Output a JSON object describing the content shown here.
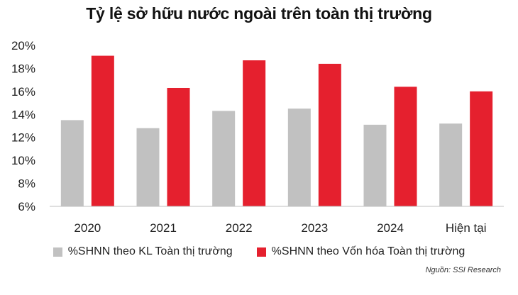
{
  "title": "Tỷ lệ sở hữu nước ngoài trên toàn thị trường",
  "source": "Nguồn: SSI Research",
  "colors": {
    "series1": "#c1c1c1",
    "series2": "#e5202e",
    "axis": "#bfbfbf"
  },
  "chart_data": {
    "type": "bar",
    "categories": [
      "2020",
      "2021",
      "2022",
      "2023",
      "2024",
      "Hiện tại"
    ],
    "series": [
      {
        "name": "%SHNN theo KL Toàn thị trường",
        "values": [
          13.5,
          12.8,
          14.3,
          14.5,
          13.1,
          13.2
        ]
      },
      {
        "name": "%SHNN theo Vốn hóa Toàn thị trường",
        "values": [
          19.1,
          16.3,
          18.7,
          18.4,
          16.4,
          16.0
        ]
      }
    ],
    "ylim": [
      6,
      20
    ],
    "yticks": [
      "6%",
      "8%",
      "10%",
      "12%",
      "14%",
      "16%",
      "18%",
      "20%"
    ],
    "ytick_values": [
      6,
      8,
      10,
      12,
      14,
      16,
      18,
      20
    ],
    "legend": "bottom",
    "grid": false
  }
}
